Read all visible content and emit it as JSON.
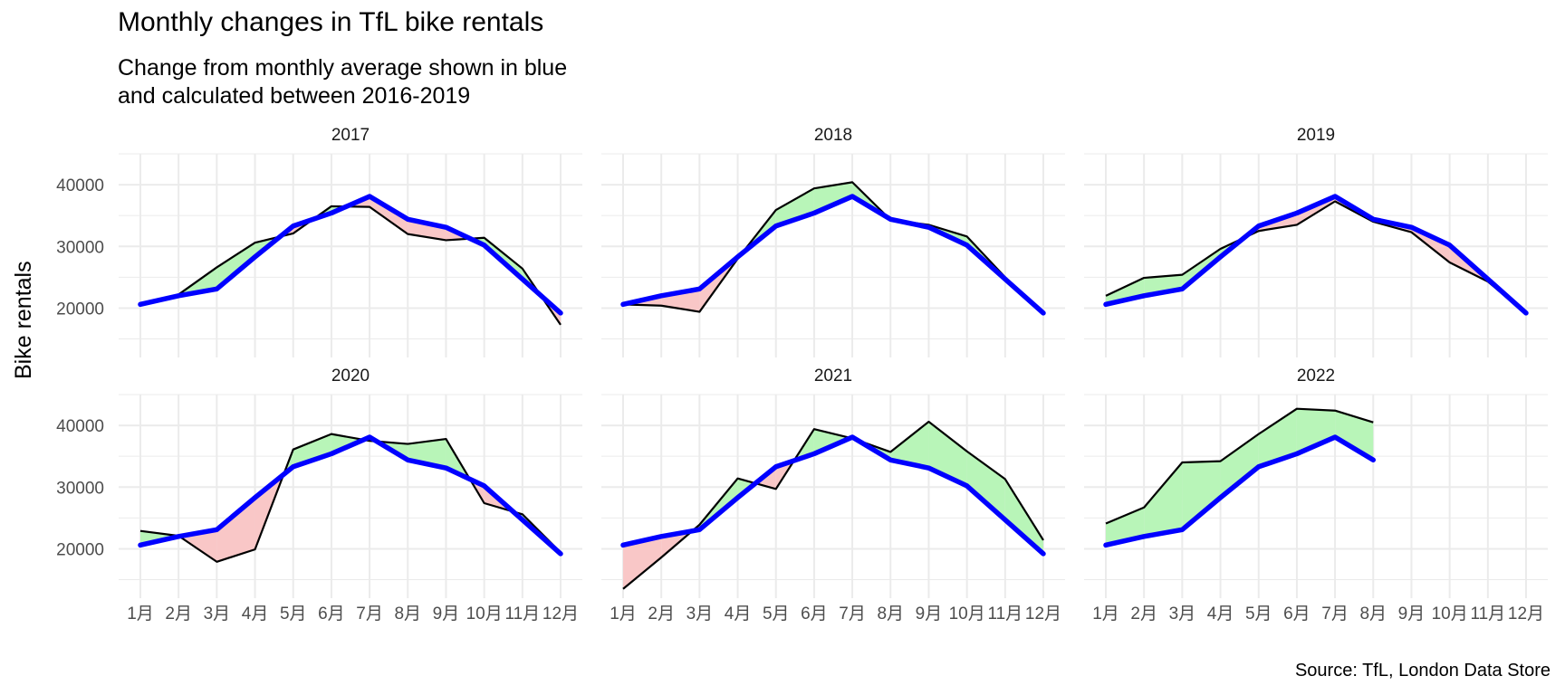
{
  "chart_data": {
    "type": "line",
    "title": "Monthly changes in TfL bike rentals",
    "subtitle_lines": [
      "Change from monthly average shown in blue",
      "and calculated between 2016-2019"
    ],
    "ylabel": "Bike rentals",
    "xlabel": "",
    "caption": "Source: TfL, London Data Store",
    "months": [
      "1月",
      "2月",
      "3月",
      "4月",
      "5月",
      "6月",
      "7月",
      "8月",
      "9月",
      "10月",
      "11月",
      "12月"
    ],
    "y_ticks": [
      20000,
      30000,
      40000
    ],
    "ylim": [
      12000,
      45000
    ],
    "grid": true,
    "colors": {
      "average_line": "#0000ff",
      "actual_line": "#000000",
      "above_fill": "#b8f5b8",
      "below_fill": "#f9c7c7",
      "grid": "#ebebeb"
    },
    "average_2016_2019": [
      20600,
      22000,
      23100,
      28300,
      33300,
      35400,
      38100,
      34400,
      33100,
      30200,
      24700,
      19200
    ],
    "panels": [
      {
        "year": "2017",
        "values": [
          20400,
          22200,
          26600,
          30600,
          32100,
          36500,
          36400,
          32000,
          31000,
          31400,
          26400,
          17300
        ]
      },
      {
        "year": "2018",
        "values": [
          20600,
          20400,
          19400,
          28000,
          35900,
          39400,
          40400,
          34300,
          33500,
          31600,
          25000,
          19000
        ]
      },
      {
        "year": "2019",
        "values": [
          22000,
          24900,
          25400,
          29600,
          32500,
          33500,
          37300,
          34000,
          32300,
          27400,
          24300,
          19100
        ]
      },
      {
        "year": "2020",
        "values": [
          22900,
          22100,
          17900,
          19900,
          36100,
          38600,
          37500,
          37000,
          37800,
          27400,
          25600,
          19400
        ]
      },
      {
        "year": "2021",
        "values": [
          13500,
          18600,
          23900,
          31400,
          29700,
          39400,
          37900,
          35700,
          40600,
          35800,
          31300,
          21400
        ]
      },
      {
        "year": "2022",
        "values": [
          24100,
          26700,
          34000,
          34200,
          38600,
          42700,
          42400,
          40500
        ]
      }
    ]
  }
}
